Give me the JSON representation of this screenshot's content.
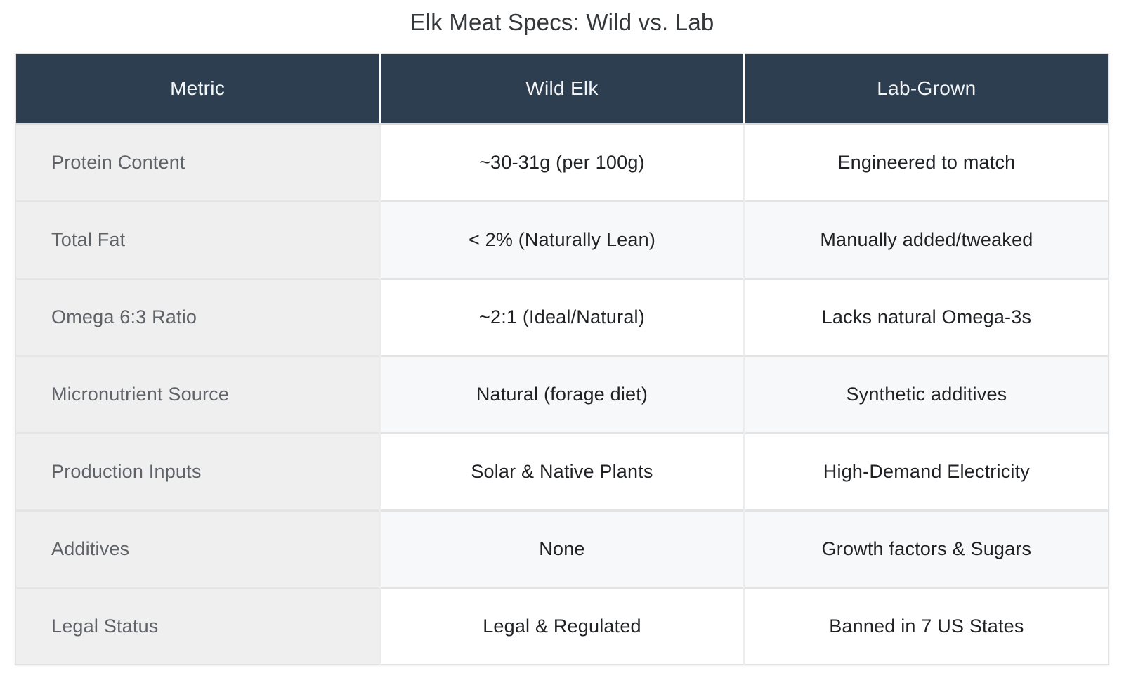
{
  "title": "Elk Meat Specs: Wild vs. Lab",
  "colors": {
    "header_bg": "#2c3e50",
    "header_text": "#f3f4f6",
    "label_column_bg": "#efefef",
    "label_text": "#5f6368",
    "value_text": "#1f2124",
    "row_bg": "#ffffff",
    "row_alt_bg": "#f7f8fa",
    "border": "#e2e2e2"
  },
  "chart_data": {
    "type": "table",
    "title": "Elk Meat Specs: Wild vs. Lab",
    "columns": [
      "Metric",
      "Wild Elk",
      "Lab-Grown"
    ],
    "rows": [
      [
        "Protein Content",
        "~30-31g (per 100g)",
        "Engineered to match"
      ],
      [
        "Total Fat",
        "< 2% (Naturally Lean)",
        "Manually added/tweaked"
      ],
      [
        "Omega 6:3 Ratio",
        "~2:1 (Ideal/Natural)",
        "Lacks natural Omega-3s"
      ],
      [
        "Micronutrient Source",
        "Natural (forage diet)",
        "Synthetic additives"
      ],
      [
        "Production Inputs",
        "Solar & Native Plants",
        "High-Demand Electricity"
      ],
      [
        "Additives",
        "None",
        "Growth factors & Sugars"
      ],
      [
        "Legal Status",
        "Legal & Regulated",
        "Banned in 7 US States"
      ]
    ]
  }
}
